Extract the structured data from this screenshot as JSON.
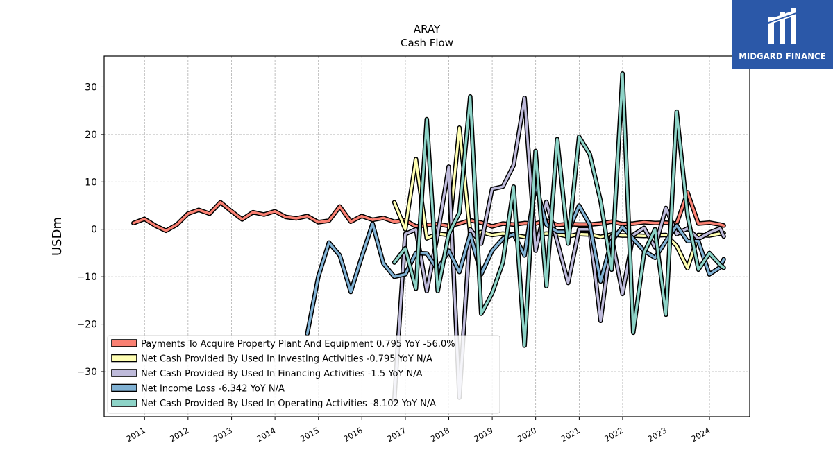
{
  "brand": {
    "name": "MIDGARD FINANCE",
    "color": "#2b58a8",
    "icon": "midgard-logo-icon"
  },
  "chart_data": {
    "type": "line",
    "title": "ARAY",
    "subtitle": "Cash Flow",
    "ylabel": "USDm",
    "xlabel": "",
    "xlim": [
      "2010-01-26",
      "2024-12-04"
    ],
    "ylim": [
      -39.5,
      36.5
    ],
    "yticks": [
      -30,
      -20,
      -10,
      0,
      10,
      20,
      30
    ],
    "ytick_labels": [
      "−30",
      "−20",
      "−10",
      "0",
      "10",
      "20",
      "30"
    ],
    "xticks": [
      "2011-01-01",
      "2012-01-01",
      "2013-01-01",
      "2014-01-01",
      "2015-01-01",
      "2016-01-01",
      "2017-01-01",
      "2018-01-01",
      "2019-01-01",
      "2020-01-01",
      "2021-01-01",
      "2022-01-01",
      "2023-01-01",
      "2024-01-01"
    ],
    "xtick_labels": [
      "2011",
      "2012",
      "2013",
      "2014",
      "2015",
      "2016",
      "2017",
      "2018",
      "2019",
      "2020",
      "2021",
      "2022",
      "2023",
      "2024"
    ],
    "grid": true,
    "legend_position": "lower-left",
    "series": [
      {
        "name": "Payments To Acquire Property Plant And Equipment",
        "legend_label": "Payments To Acquire Property Plant And Equipment  0.795 YoY -56.0%",
        "color": "#fa8072",
        "points": [
          [
            "2010-09-30",
            1.3
          ],
          [
            "2010-12-31",
            2.2
          ],
          [
            "2011-03-31",
            0.8
          ],
          [
            "2011-06-30",
            -0.3
          ],
          [
            "2011-09-30",
            1.0
          ],
          [
            "2011-12-31",
            3.3
          ],
          [
            "2012-03-31",
            4.1
          ],
          [
            "2012-06-30",
            3.3
          ],
          [
            "2012-09-30",
            5.7
          ],
          [
            "2012-12-31",
            3.8
          ],
          [
            "2013-03-31",
            2.1
          ],
          [
            "2013-06-30",
            3.6
          ],
          [
            "2013-09-30",
            3.1
          ],
          [
            "2013-12-31",
            3.8
          ],
          [
            "2014-03-31",
            2.6
          ],
          [
            "2014-06-30",
            2.3
          ],
          [
            "2014-09-30",
            2.8
          ],
          [
            "2014-12-31",
            1.5
          ],
          [
            "2015-03-31",
            1.8
          ],
          [
            "2015-06-30",
            4.8
          ],
          [
            "2015-09-30",
            1.6
          ],
          [
            "2015-12-31",
            2.8
          ],
          [
            "2016-03-31",
            2.0
          ],
          [
            "2016-06-30",
            2.4
          ],
          [
            "2016-09-30",
            1.6
          ],
          [
            "2016-12-31",
            1.9
          ],
          [
            "2017-03-31",
            0.6
          ],
          [
            "2017-06-30",
            0.9
          ],
          [
            "2017-09-30",
            1.1
          ],
          [
            "2017-12-31",
            0.7
          ],
          [
            "2018-03-31",
            1.2
          ],
          [
            "2018-06-30",
            1.9
          ],
          [
            "2018-09-30",
            1.4
          ],
          [
            "2018-12-31",
            0.6
          ],
          [
            "2019-03-31",
            1.2
          ],
          [
            "2019-06-30",
            1.0
          ],
          [
            "2019-09-30",
            1.3
          ],
          [
            "2019-12-31",
            1.2
          ],
          [
            "2020-03-31",
            1.8
          ],
          [
            "2020-06-30",
            0.9
          ],
          [
            "2020-09-30",
            1.1
          ],
          [
            "2020-12-31",
            1.0
          ],
          [
            "2021-03-31",
            1.0
          ],
          [
            "2021-06-30",
            1.2
          ],
          [
            "2021-09-30",
            1.6
          ],
          [
            "2021-12-31",
            1.1
          ],
          [
            "2022-03-31",
            1.2
          ],
          [
            "2022-06-30",
            1.5
          ],
          [
            "2022-09-30",
            1.3
          ],
          [
            "2022-12-31",
            1.4
          ],
          [
            "2023-03-31",
            1.2
          ],
          [
            "2023-06-30",
            7.8
          ],
          [
            "2023-09-30",
            1.2
          ],
          [
            "2023-12-31",
            1.4
          ],
          [
            "2024-03-31",
            1.0
          ],
          [
            "2024-04-30",
            0.8
          ]
        ]
      },
      {
        "name": "Net Cash Provided By Used In Investing Activities",
        "legend_label": "Net Cash Provided By Used In Investing Activities  -0.795 YoY N/A",
        "color": "#ffffb3",
        "points": [
          [
            "2016-09-30",
            5.7
          ],
          [
            "2016-12-31",
            0.0
          ],
          [
            "2017-03-31",
            14.8
          ],
          [
            "2017-06-30",
            -1.9
          ],
          [
            "2017-09-30",
            -0.9
          ],
          [
            "2017-12-31",
            -1.2
          ],
          [
            "2018-03-31",
            21.4
          ],
          [
            "2018-06-30",
            -1.0
          ],
          [
            "2018-09-30",
            -0.6
          ],
          [
            "2018-12-31",
            -1.2
          ],
          [
            "2019-03-31",
            -0.9
          ],
          [
            "2019-06-30",
            -1.2
          ],
          [
            "2019-09-30",
            -1.6
          ],
          [
            "2019-12-31",
            -1.2
          ],
          [
            "2020-03-31",
            -0.9
          ],
          [
            "2020-06-30",
            -1.0
          ],
          [
            "2020-09-30",
            -1.5
          ],
          [
            "2020-12-31",
            -1.0
          ],
          [
            "2021-03-31",
            -1.1
          ],
          [
            "2021-06-30",
            -1.6
          ],
          [
            "2021-09-30",
            -1.1
          ],
          [
            "2021-12-31",
            -1.3
          ],
          [
            "2022-03-31",
            -1.3
          ],
          [
            "2022-06-30",
            -1.4
          ],
          [
            "2022-09-30",
            -1.3
          ],
          [
            "2022-12-31",
            -1.2
          ],
          [
            "2023-03-31",
            -3.5
          ],
          [
            "2023-06-30",
            -8.2
          ],
          [
            "2023-09-30",
            -1.2
          ],
          [
            "2023-12-31",
            -1.3
          ],
          [
            "2024-03-31",
            -0.9
          ],
          [
            "2024-04-30",
            -0.8
          ]
        ]
      },
      {
        "name": "Net Cash Provided By Used In Financing Activities",
        "legend_label": "Net Cash Provided By Used In Financing Activities  -1.5 YoY N/A",
        "color": "#bebada",
        "points": [
          [
            "2016-09-30",
            -36.0
          ],
          [
            "2016-12-31",
            -1.0
          ],
          [
            "2017-03-31",
            0.0
          ],
          [
            "2017-06-30",
            -13.0
          ],
          [
            "2017-09-30",
            -1.0
          ],
          [
            "2017-12-31",
            13.2
          ],
          [
            "2018-03-31",
            -35.5
          ],
          [
            "2018-06-30",
            0.0
          ],
          [
            "2018-09-30",
            -3.0
          ],
          [
            "2018-12-31",
            8.5
          ],
          [
            "2019-03-31",
            9.0
          ],
          [
            "2019-06-30",
            13.5
          ],
          [
            "2019-09-30",
            27.7
          ],
          [
            "2019-12-31",
            -4.5
          ],
          [
            "2020-03-31",
            5.8
          ],
          [
            "2020-06-30",
            -2.5
          ],
          [
            "2020-09-30",
            -11.3
          ],
          [
            "2020-12-31",
            0.0
          ],
          [
            "2021-03-31",
            0.0
          ],
          [
            "2021-06-30",
            -19.3
          ],
          [
            "2021-09-30",
            -1.5
          ],
          [
            "2021-12-31",
            -13.6
          ],
          [
            "2022-03-31",
            -1.2
          ],
          [
            "2022-06-30",
            0.3
          ],
          [
            "2022-09-30",
            -3.8
          ],
          [
            "2022-12-31",
            4.5
          ],
          [
            "2023-03-31",
            -1.0
          ],
          [
            "2023-06-30",
            0.2
          ],
          [
            "2023-09-30",
            -2.0
          ],
          [
            "2023-12-31",
            -0.7
          ],
          [
            "2024-03-31",
            0.2
          ],
          [
            "2024-04-30",
            -1.5
          ]
        ]
      },
      {
        "name": "Net Income Loss",
        "legend_label": "Net Income Loss  -6.342 YoY N/A",
        "color": "#80b1d3",
        "points": [
          [
            "2014-09-30",
            -22.0
          ],
          [
            "2014-12-31",
            -10.0
          ],
          [
            "2015-03-31",
            -2.8
          ],
          [
            "2015-06-30",
            -5.5
          ],
          [
            "2015-09-30",
            -13.2
          ],
          [
            "2015-12-31",
            -5.8
          ],
          [
            "2016-03-31",
            1.2
          ],
          [
            "2016-06-30",
            -7.2
          ],
          [
            "2016-09-30",
            -10.0
          ],
          [
            "2016-12-31",
            -9.5
          ],
          [
            "2017-03-31",
            -5.0
          ],
          [
            "2017-06-30",
            -5.1
          ],
          [
            "2017-09-30",
            -8.5
          ],
          [
            "2017-12-31",
            -4.5
          ],
          [
            "2018-03-31",
            -9.0
          ],
          [
            "2018-06-30",
            -1.0
          ],
          [
            "2018-09-30",
            -9.5
          ],
          [
            "2018-12-31",
            -4.5
          ],
          [
            "2019-03-31",
            -2.0
          ],
          [
            "2019-06-30",
            -1.0
          ],
          [
            "2019-09-30",
            -5.5
          ],
          [
            "2019-12-31",
            9.5
          ],
          [
            "2020-03-31",
            1.0
          ],
          [
            "2020-06-30",
            -0.5
          ],
          [
            "2020-09-30",
            -0.5
          ],
          [
            "2020-12-31",
            5.0
          ],
          [
            "2021-03-31",
            1.0
          ],
          [
            "2021-06-30",
            -11.0
          ],
          [
            "2021-09-30",
            -2.5
          ],
          [
            "2021-12-31",
            0.5
          ],
          [
            "2022-03-31",
            -2.0
          ],
          [
            "2022-06-30",
            -4.5
          ],
          [
            "2022-09-30",
            -6.0
          ],
          [
            "2022-12-31",
            -2.5
          ],
          [
            "2023-03-31",
            0.8
          ],
          [
            "2023-06-30",
            -2.5
          ],
          [
            "2023-09-30",
            -2.5
          ],
          [
            "2023-12-31",
            -9.5
          ],
          [
            "2024-03-31",
            -8.0
          ],
          [
            "2024-04-30",
            -6.3
          ]
        ]
      },
      {
        "name": "Net Cash Provided By Used In Operating Activities",
        "legend_label": "Net Cash Provided By Used In Operating Activities  -8.102 YoY N/A",
        "color": "#8dd3c7",
        "points": [
          [
            "2016-09-30",
            -7.0
          ],
          [
            "2016-12-31",
            -4.0
          ],
          [
            "2017-03-31",
            -12.5
          ],
          [
            "2017-06-30",
            23.2
          ],
          [
            "2017-09-30",
            -13.0
          ],
          [
            "2017-12-31",
            -1.0
          ],
          [
            "2018-03-31",
            3.5
          ],
          [
            "2018-06-30",
            28.0
          ],
          [
            "2018-09-30",
            -17.8
          ],
          [
            "2018-12-31",
            -13.5
          ],
          [
            "2019-03-31",
            -7.0
          ],
          [
            "2019-06-30",
            9.0
          ],
          [
            "2019-09-30",
            -24.5
          ],
          [
            "2019-12-31",
            16.5
          ],
          [
            "2020-03-31",
            -12.0
          ],
          [
            "2020-06-30",
            19.0
          ],
          [
            "2020-09-30",
            -3.0
          ],
          [
            "2020-12-31",
            19.5
          ],
          [
            "2021-03-31",
            15.8
          ],
          [
            "2021-06-30",
            6.0
          ],
          [
            "2021-09-30",
            -8.5
          ],
          [
            "2021-12-31",
            32.8
          ],
          [
            "2022-03-31",
            -21.8
          ],
          [
            "2022-06-30",
            -5.0
          ],
          [
            "2022-09-30",
            0.0
          ],
          [
            "2022-12-31",
            -18.0
          ],
          [
            "2023-03-31",
            24.8
          ],
          [
            "2023-06-30",
            3.0
          ],
          [
            "2023-09-30",
            -8.5
          ],
          [
            "2023-12-31",
            -5.0
          ],
          [
            "2024-03-31",
            -7.5
          ],
          [
            "2024-04-30",
            -8.1
          ]
        ]
      }
    ]
  }
}
